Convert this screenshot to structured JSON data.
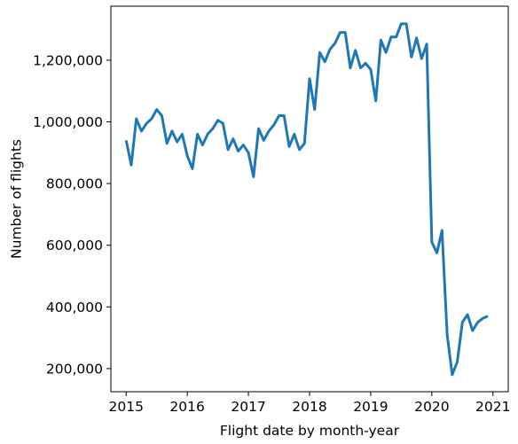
{
  "chart_data": {
    "type": "line",
    "title": "",
    "xlabel": "Flight date by month-year",
    "ylabel": "Number of flights",
    "xlim": [
      2014.75,
      2021.25
    ],
    "ylim": [
      125000,
      1375000
    ],
    "x_ticks": [
      {
        "value": 2015,
        "label": "2015"
      },
      {
        "value": 2016,
        "label": "2016"
      },
      {
        "value": 2017,
        "label": "2017"
      },
      {
        "value": 2018,
        "label": "2018"
      },
      {
        "value": 2019,
        "label": "2019"
      },
      {
        "value": 2020,
        "label": "2020"
      },
      {
        "value": 2021,
        "label": "2021"
      }
    ],
    "y_ticks": [
      {
        "value": 200000,
        "label": "200,000"
      },
      {
        "value": 400000,
        "label": "400,000"
      },
      {
        "value": 600000,
        "label": "600,000"
      },
      {
        "value": 800000,
        "label": "800,000"
      },
      {
        "value": 1000000,
        "label": "1,000,000"
      },
      {
        "value": 1200000,
        "label": "1,200,000"
      }
    ],
    "grid": false,
    "legend": "none",
    "line_color": "#1f77b4",
    "series": [
      {
        "x": [
          "2015-01",
          "2015-02",
          "2015-03",
          "2015-04",
          "2015-05",
          "2015-06",
          "2015-07",
          "2015-08",
          "2015-09",
          "2015-10",
          "2015-11",
          "2015-12",
          "2016-01",
          "2016-02",
          "2016-03",
          "2016-04",
          "2016-05",
          "2016-06",
          "2016-07",
          "2016-08",
          "2016-09",
          "2016-10",
          "2016-11",
          "2016-12",
          "2017-01",
          "2017-02",
          "2017-03",
          "2017-04",
          "2017-05",
          "2017-06",
          "2017-07",
          "2017-08",
          "2017-09",
          "2017-10",
          "2017-11",
          "2017-12",
          "2018-01",
          "2018-02",
          "2018-03",
          "2018-04",
          "2018-05",
          "2018-06",
          "2018-07",
          "2018-08",
          "2018-09",
          "2018-10",
          "2018-11",
          "2018-12",
          "2019-01",
          "2019-02",
          "2019-03",
          "2019-04",
          "2019-05",
          "2019-06",
          "2019-07",
          "2019-08",
          "2019-09",
          "2019-10",
          "2019-11",
          "2019-12",
          "2020-01",
          "2020-02",
          "2020-03",
          "2020-04",
          "2020-05",
          "2020-06",
          "2020-07",
          "2020-08",
          "2020-09",
          "2020-10",
          "2020-11",
          "2020-12"
        ],
        "values": [
          940000,
          860000,
          1010000,
          970000,
          995000,
          1010000,
          1040000,
          1020000,
          930000,
          970000,
          935000,
          960000,
          890000,
          848000,
          960000,
          925000,
          960000,
          978000,
          1005000,
          995000,
          910000,
          945000,
          905000,
          925000,
          900000,
          822000,
          978000,
          940000,
          970000,
          990000,
          1020000,
          1020000,
          920000,
          960000,
          910000,
          930000,
          1140000,
          1040000,
          1225000,
          1195000,
          1235000,
          1255000,
          1290000,
          1290000,
          1175000,
          1232000,
          1175000,
          1190000,
          1170000,
          1068000,
          1265000,
          1225000,
          1275000,
          1275000,
          1318000,
          1318000,
          1210000,
          1272000,
          1205000,
          1252000,
          610000,
          575000,
          648000,
          312000,
          180000,
          222000,
          350000,
          375000,
          323000,
          350000,
          363000,
          370000
        ]
      }
    ]
  }
}
